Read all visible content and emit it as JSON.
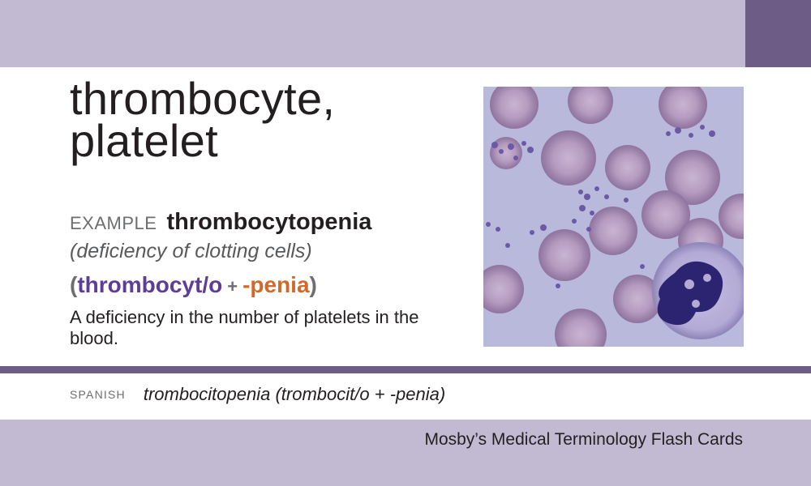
{
  "card": {
    "term_line1": "thrombocyte,",
    "term_line2": "platelet",
    "example_label": "EXAMPLE",
    "example_word": "thrombocytopenia",
    "meaning": "(deficiency of clotting cells)",
    "parts": {
      "open": "(",
      "root": "thrombocyt/o",
      "plus": "+",
      "suffix": "-penia",
      "close": ")"
    },
    "definition": "A deficiency in the number of platelets in the blood.",
    "spanish_label": "SPANISH",
    "spanish_term": "trombocitopenia (trombocit/o + -penia)",
    "footer": "Mosby’s Medical Terminology Flash Cards"
  },
  "colors": {
    "band": "#c2bad3",
    "accent_purple": "#6d5c86",
    "root_purple": "#5f3d96",
    "suffix_orange": "#d2692a"
  }
}
